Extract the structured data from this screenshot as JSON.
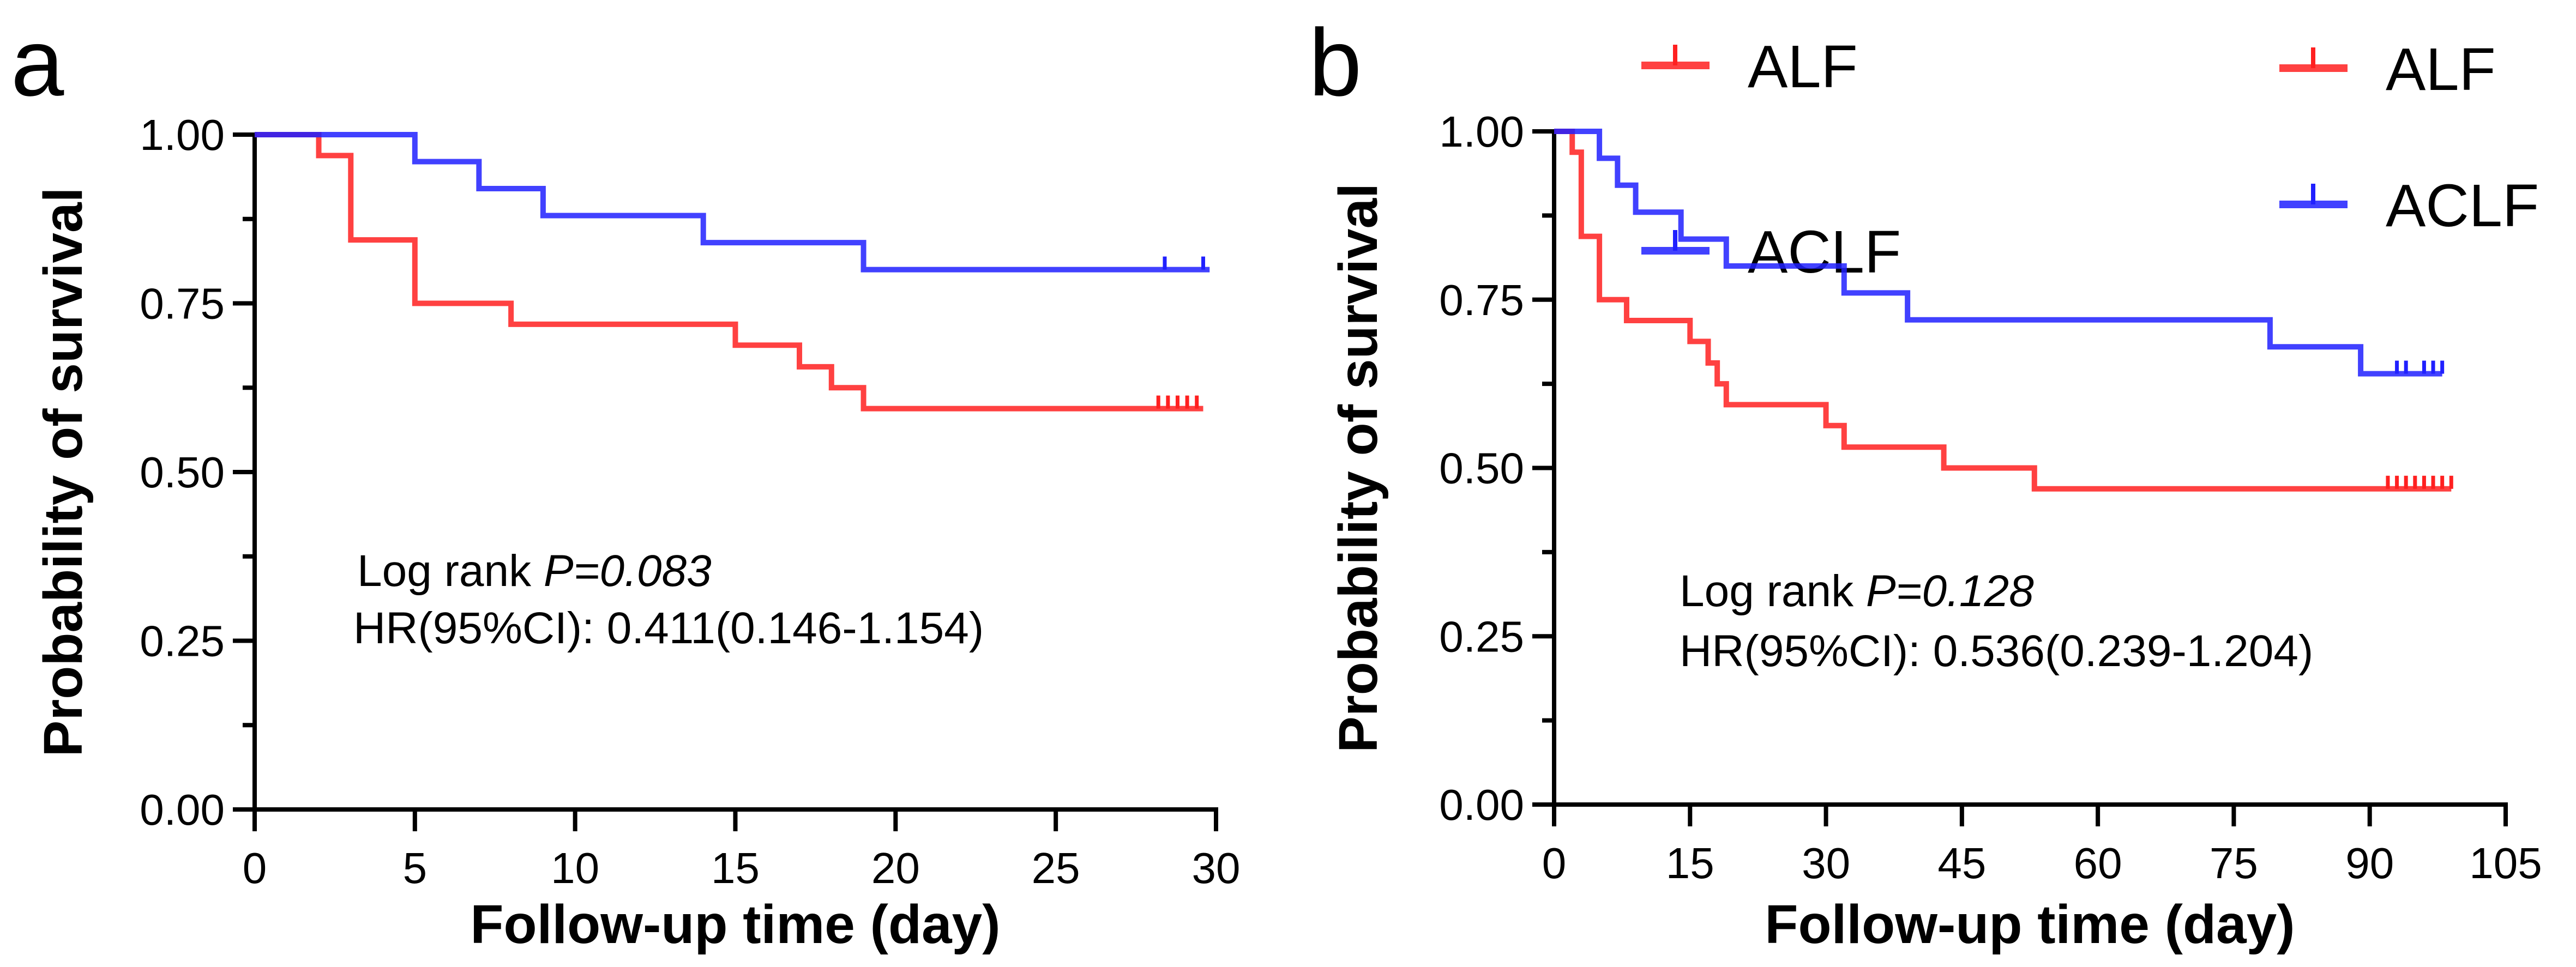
{
  "colors": {
    "ALF": "#ff2020",
    "ACLF": "#2020ff",
    "axis": "#000000"
  },
  "chart_data": [
    {
      "type": "line",
      "subtype": "kaplan-meier step",
      "panel_label": "a",
      "xlabel": "Follow-up time (day)",
      "ylabel": "Probability of survival",
      "xlim": [
        0,
        30
      ],
      "ylim": [
        0,
        1
      ],
      "xticks": [
        "0",
        "5",
        "10",
        "15",
        "20",
        "25",
        "30"
      ],
      "xtick_values": [
        0,
        5,
        10,
        15,
        20,
        25,
        30
      ],
      "yticks": [
        "0.00",
        "0.25",
        "0.50",
        "0.75",
        "1.00"
      ],
      "ytick_values": [
        0,
        0.25,
        0.5,
        0.75,
        1
      ],
      "legend_position": "top-right",
      "series": [
        {
          "name": "ALF",
          "color": "#ff2020",
          "steps": [
            [
              0,
              1
            ],
            [
              2,
              0.969
            ],
            [
              3,
              0.844
            ],
            [
              5,
              0.75
            ],
            [
              8,
              0.719
            ],
            [
              15,
              0.688
            ],
            [
              17,
              0.656
            ],
            [
              18,
              0.625
            ],
            [
              19,
              0.594
            ]
          ],
          "end": 29.6,
          "censored": [
            28.2,
            28.5,
            28.8,
            29.1,
            29.4
          ]
        },
        {
          "name": "ACLF",
          "color": "#2020ff",
          "steps": [
            [
              0,
              1
            ],
            [
              5,
              0.96
            ],
            [
              7,
              0.92
            ],
            [
              9,
              0.88
            ],
            [
              14,
              0.84
            ],
            [
              19,
              0.8
            ]
          ],
          "end": 29.8,
          "censored": [
            28.4,
            29.6
          ]
        }
      ],
      "annotation": {
        "test": "Log rank ",
        "p_label": "P=0.083",
        "hr": "HR(95%CI): 0.411(0.146-1.154)"
      }
    },
    {
      "type": "line",
      "subtype": "kaplan-meier step",
      "panel_label": "b",
      "xlabel": "Follow-up time (day)",
      "ylabel": "Probability of survival",
      "xlim": [
        0,
        105
      ],
      "ylim": [
        0,
        1
      ],
      "xticks": [
        "0",
        "15",
        "30",
        "45",
        "60",
        "75",
        "90",
        "105"
      ],
      "xtick_values": [
        0,
        15,
        30,
        45,
        60,
        75,
        90,
        105
      ],
      "yticks": [
        "0.00",
        "0.25",
        "0.50",
        "0.75",
        "1.00"
      ],
      "ytick_values": [
        0,
        0.25,
        0.5,
        0.75,
        1
      ],
      "legend_position": "top-right",
      "series": [
        {
          "name": "ALF",
          "color": "#ff2020",
          "steps": [
            [
              0,
              1
            ],
            [
              2,
              0.969
            ],
            [
              3,
              0.844
            ],
            [
              5,
              0.75
            ],
            [
              8,
              0.719
            ],
            [
              15,
              0.688
            ],
            [
              17,
              0.656
            ],
            [
              18,
              0.625
            ],
            [
              19,
              0.594
            ],
            [
              30,
              0.563
            ],
            [
              32,
              0.531
            ],
            [
              43,
              0.5
            ],
            [
              53,
              0.469
            ]
          ],
          "end": 99,
          "censored": [
            92,
            93,
            94,
            95,
            96,
            97,
            98,
            99
          ]
        },
        {
          "name": "ACLF",
          "color": "#2020ff",
          "steps": [
            [
              0,
              1
            ],
            [
              5,
              0.96
            ],
            [
              7,
              0.92
            ],
            [
              9,
              0.88
            ],
            [
              14,
              0.84
            ],
            [
              19,
              0.8
            ],
            [
              32,
              0.76
            ],
            [
              39,
              0.72
            ],
            [
              79,
              0.68
            ],
            [
              89,
              0.64
            ]
          ],
          "end": 98,
          "censored": [
            93,
            94,
            96,
            97,
            98
          ]
        }
      ],
      "annotation": {
        "test": "Log rank ",
        "p_label": "P=0.128",
        "hr": "HR(95%CI): 0.536(0.239-1.204)"
      }
    }
  ]
}
